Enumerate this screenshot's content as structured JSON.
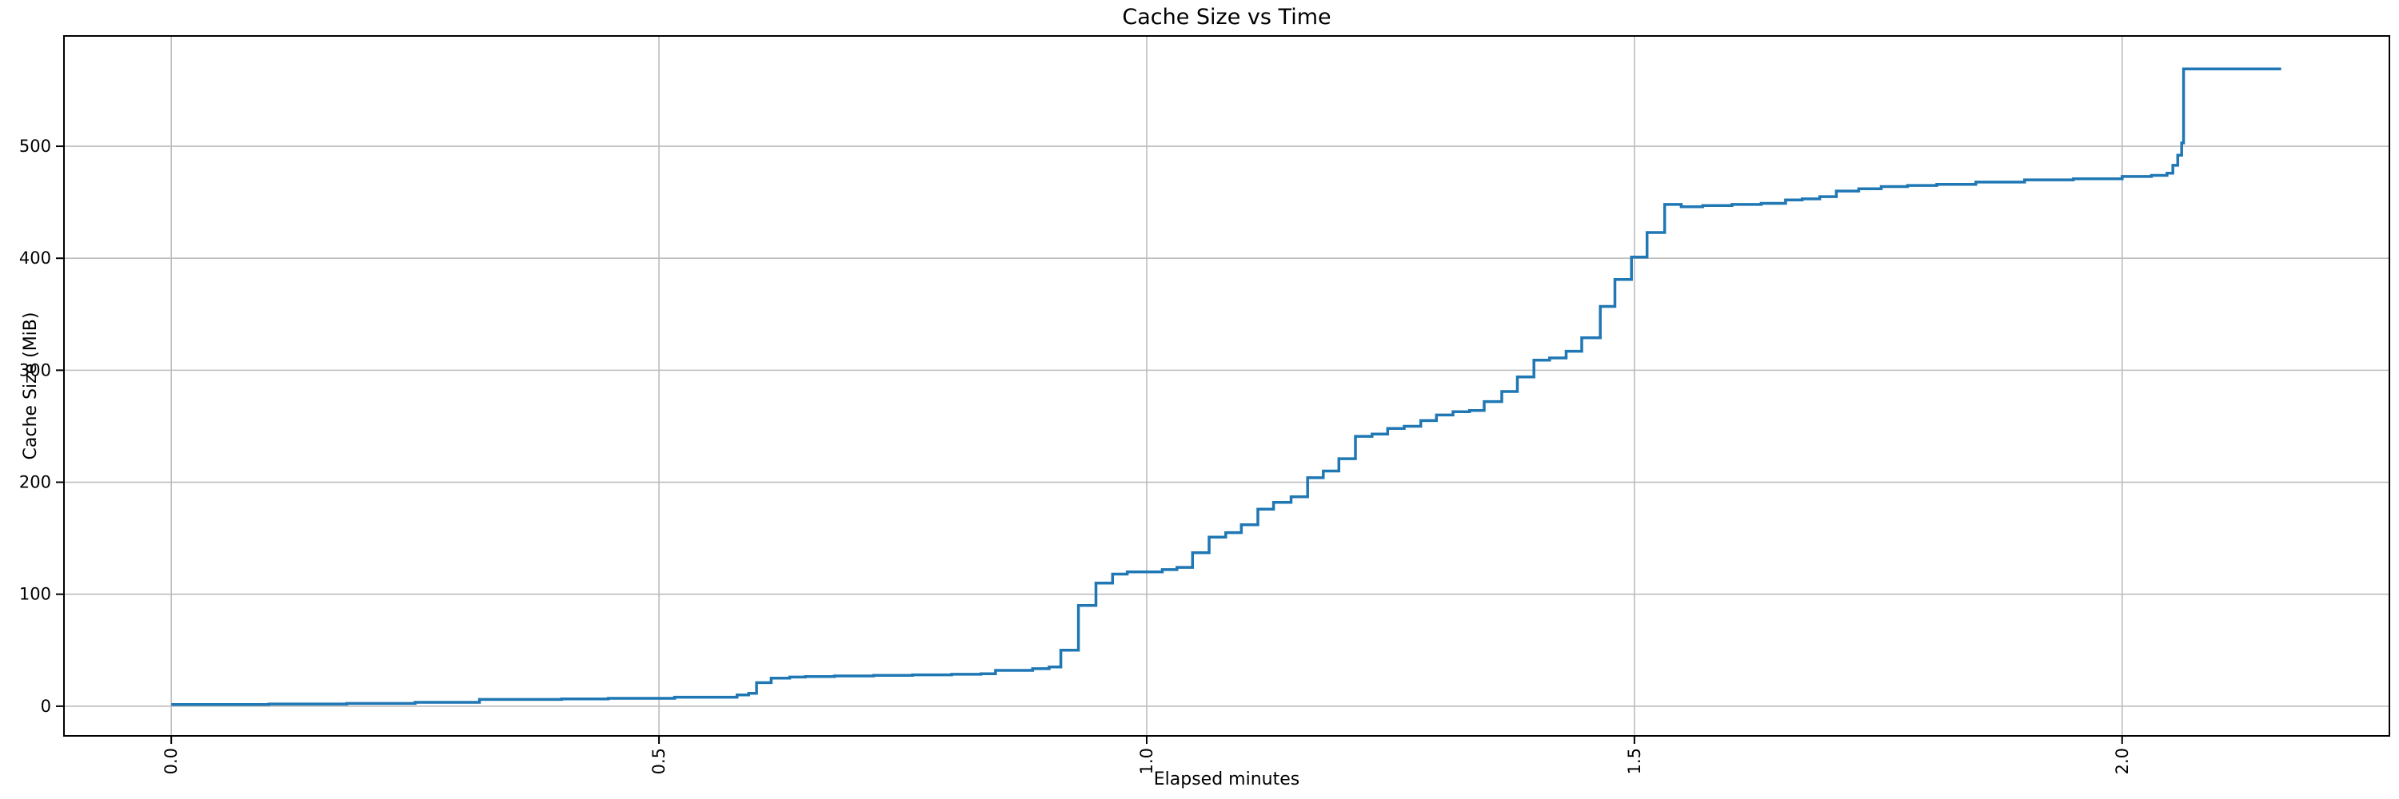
{
  "figure": {
    "background": "#ffffff"
  },
  "chart_data": {
    "type": "line",
    "line_style": "step-post",
    "title": "Cache Size vs Time",
    "xlabel": "Elapsed minutes",
    "ylabel": "Cache Size (MiB)",
    "legend": null,
    "grid": true,
    "x_ticks": [
      0.0,
      0.5,
      1.0,
      1.5,
      2.0
    ],
    "x_tick_labels": [
      "0.0",
      "0.5",
      "1.0",
      "1.5",
      "2.0"
    ],
    "x_tick_labels_rotated_90": true,
    "y_ticks": [
      0,
      100,
      200,
      300,
      400,
      500
    ],
    "y_tick_labels": [
      "0",
      "100",
      "200",
      "300",
      "400",
      "500"
    ],
    "xlim": [
      -0.11,
      2.274
    ],
    "ylim": [
      -26.5,
      598.5
    ],
    "line_color": "#1f77b4",
    "grid_color": "#bcbcbc",
    "spine_color": "#000000",
    "series": [
      {
        "name": "cache_size_mib",
        "points": [
          [
            0.0,
            1.5
          ],
          [
            0.1,
            2
          ],
          [
            0.18,
            2.5
          ],
          [
            0.25,
            3.5
          ],
          [
            0.316,
            6
          ],
          [
            0.4,
            6.5
          ],
          [
            0.448,
            7
          ],
          [
            0.516,
            8
          ],
          [
            0.58,
            10
          ],
          [
            0.592,
            11.5
          ],
          [
            0.6,
            21
          ],
          [
            0.615,
            25
          ],
          [
            0.634,
            26
          ],
          [
            0.65,
            26.5
          ],
          [
            0.68,
            27
          ],
          [
            0.72,
            27.5
          ],
          [
            0.76,
            28
          ],
          [
            0.8,
            28.5
          ],
          [
            0.83,
            29
          ],
          [
            0.845,
            32
          ],
          [
            0.883,
            33.5
          ],
          [
            0.9,
            35
          ],
          [
            0.912,
            50
          ],
          [
            0.93,
            90
          ],
          [
            0.948,
            110
          ],
          [
            0.965,
            118
          ],
          [
            0.98,
            120
          ],
          [
            1.016,
            122
          ],
          [
            1.031,
            124
          ],
          [
            1.047,
            137
          ],
          [
            1.064,
            151
          ],
          [
            1.081,
            155
          ],
          [
            1.097,
            162
          ],
          [
            1.114,
            176
          ],
          [
            1.13,
            182
          ],
          [
            1.148,
            187
          ],
          [
            1.165,
            204
          ],
          [
            1.181,
            210
          ],
          [
            1.197,
            221
          ],
          [
            1.214,
            241
          ],
          [
            1.231,
            243
          ],
          [
            1.247,
            248
          ],
          [
            1.264,
            250
          ],
          [
            1.281,
            255
          ],
          [
            1.297,
            260
          ],
          [
            1.314,
            263
          ],
          [
            1.331,
            264
          ],
          [
            1.346,
            272
          ],
          [
            1.364,
            281
          ],
          [
            1.38,
            294
          ],
          [
            1.397,
            309
          ],
          [
            1.413,
            311
          ],
          [
            1.43,
            317
          ],
          [
            1.446,
            329
          ],
          [
            1.465,
            357
          ],
          [
            1.48,
            381
          ],
          [
            1.497,
            401
          ],
          [
            1.513,
            423
          ],
          [
            1.531,
            448
          ],
          [
            1.548,
            446
          ],
          [
            1.57,
            447
          ],
          [
            1.6,
            448
          ],
          [
            1.63,
            449
          ],
          [
            1.655,
            452
          ],
          [
            1.672,
            453
          ],
          [
            1.69,
            455
          ],
          [
            1.707,
            460
          ],
          [
            1.73,
            462
          ],
          [
            1.753,
            464
          ],
          [
            1.78,
            465
          ],
          [
            1.81,
            466
          ],
          [
            1.85,
            468
          ],
          [
            1.9,
            470
          ],
          [
            1.95,
            471
          ],
          [
            2.0,
            473
          ],
          [
            2.03,
            474
          ],
          [
            2.046,
            476
          ],
          [
            2.052,
            483
          ],
          [
            2.057,
            492
          ],
          [
            2.061,
            503
          ],
          [
            2.063,
            569
          ],
          [
            2.163,
            569
          ]
        ]
      }
    ]
  }
}
